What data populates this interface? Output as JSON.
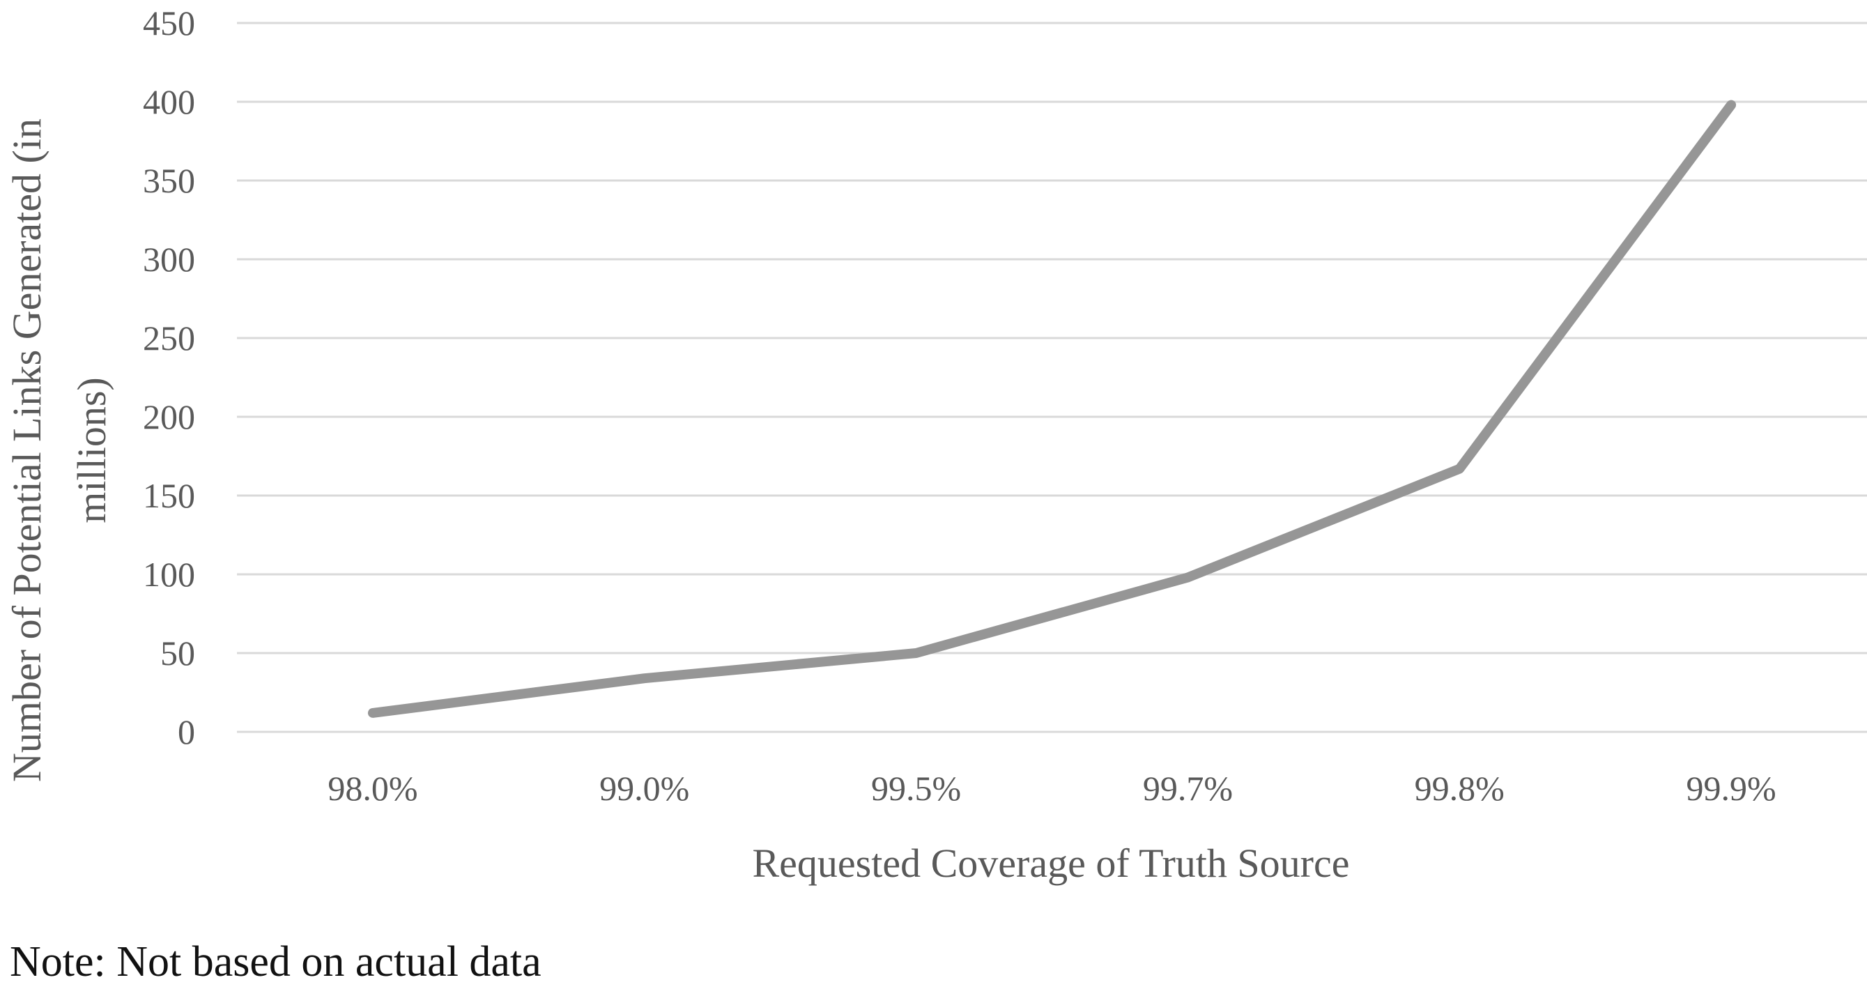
{
  "chart_data": {
    "type": "line",
    "title": "",
    "categories": [
      "98.0%",
      "99.0%",
      "99.5%",
      "99.7%",
      "99.8%",
      "99.9%"
    ],
    "series": [
      {
        "values": [
          12,
          34,
          50,
          98,
          167,
          398
        ]
      }
    ],
    "xlabel": "Requested Coverage of Truth Source",
    "ylabel_lines": [
      "Number of Potential Links Generated (in",
      "millions)"
    ],
    "ylim": [
      0,
      450
    ],
    "yticks": [
      0,
      50,
      100,
      150,
      200,
      250,
      300,
      350,
      400,
      450
    ],
    "grid": true,
    "legend": "none",
    "line_color": "#969696",
    "grid_color": "#d9d9d9",
    "text_color": "#595959"
  },
  "note": "Note: Not based on actual data"
}
